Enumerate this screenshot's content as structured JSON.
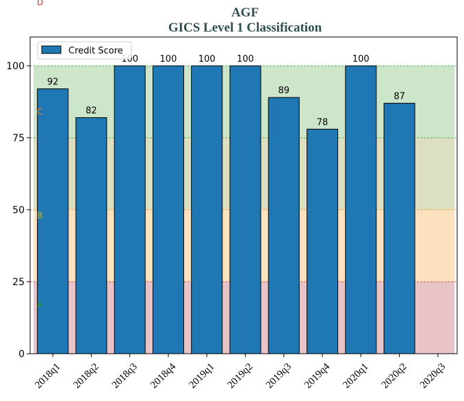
{
  "chart_data": {
    "type": "bar",
    "title": "AGF",
    "subtitle": "GICS Level 1 Classification",
    "categories": [
      "2018q1",
      "2018q2",
      "2018q3",
      "2018q4",
      "2019q1",
      "2019q2",
      "2019q3",
      "2019q4",
      "2020q1",
      "2020q2",
      "2020q3"
    ],
    "series": [
      {
        "name": "Credit Score",
        "values": [
          92,
          82,
          100,
          100,
          100,
          100,
          89,
          78,
          100,
          87,
          null
        ]
      }
    ],
    "ylim": [
      0,
      110
    ],
    "yticks": [
      0,
      25,
      50,
      75,
      100
    ],
    "xlabel": "",
    "ylabel": "",
    "legend_position": "top-left",
    "bar_color": "#1f77b4",
    "bands": [
      {
        "label": "A",
        "from": 0,
        "to": 25,
        "color": "#e8c4c8",
        "label_color": "#2ca02c",
        "line_color": "#d62728"
      },
      {
        "label": "B",
        "from": 25,
        "to": 50,
        "color": "#fde2c0",
        "label_color": "#bcbd22",
        "line_color": "#ff7f0e"
      },
      {
        "label": "C",
        "from": 50,
        "to": 75,
        "color": "#dde0c0",
        "label_color": "#ff7f0e",
        "line_color": "#2ca02c"
      },
      {
        "label": "D",
        "from": 75,
        "to": 100,
        "color": "#cde5c8",
        "label_color": "#d62728",
        "line_color": "#2ca02c"
      }
    ]
  }
}
